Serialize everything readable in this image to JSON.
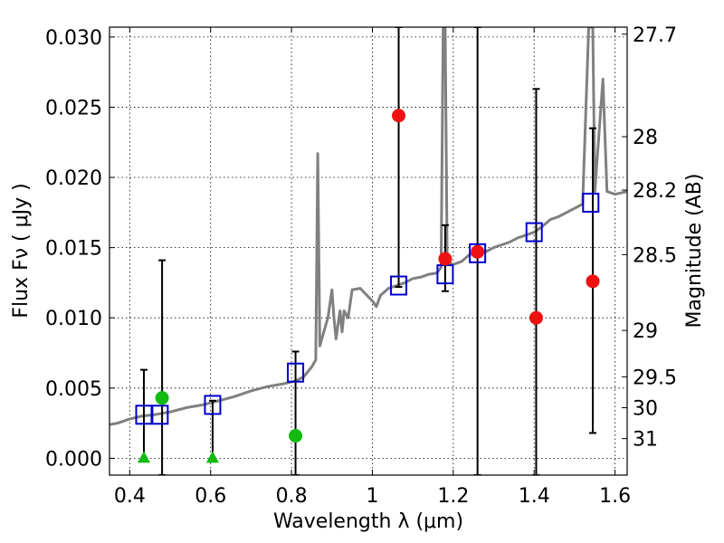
{
  "chart_data": {
    "type": "scatter",
    "xlabel": "Wavelength  λ (μm)",
    "ylabel_left": "Flux  Fν  ( μJy )",
    "ylabel_right": "Magnitude (AB)",
    "xlim": [
      0.35,
      1.63
    ],
    "ylim": [
      -0.0012,
      0.0307
    ],
    "x_ticks": [
      0.4,
      0.6,
      0.8,
      1.0,
      1.2,
      1.4,
      1.6
    ],
    "x_tick_labels": [
      "0.4",
      "0.6",
      "0.8",
      "1",
      "1.2",
      "1.4",
      "1.6"
    ],
    "y_ticks": [
      0.0,
      0.005,
      0.01,
      0.015,
      0.02,
      0.025,
      0.03
    ],
    "y_tick_labels": [
      "0.000",
      "0.005",
      "0.010",
      "0.015",
      "0.020",
      "0.025",
      "0.030"
    ],
    "right_ticks": [
      {
        "label": "27.7",
        "flux": 0.0302
      },
      {
        "label": "28",
        "flux": 0.0229
      },
      {
        "label": "28.2",
        "flux": 0.0191
      },
      {
        "label": "28.5",
        "flux": 0.0145
      },
      {
        "label": "29",
        "flux": 0.0091
      },
      {
        "label": "29.5",
        "flux": 0.0058
      },
      {
        "label": "30",
        "flux": 0.0036
      },
      {
        "label": "31",
        "flux": 0.0014
      }
    ],
    "grid": true,
    "colors": {
      "model": "#808080",
      "model_photometry": "#0000cc",
      "detection": "#ee1111",
      "low_sn": "#11bb11",
      "error_bar": "#000000"
    },
    "model_spectrum": [
      [
        0.35,
        0.0024
      ],
      [
        0.37,
        0.0025
      ],
      [
        0.4,
        0.0028
      ],
      [
        0.43,
        0.003
      ],
      [
        0.46,
        0.0031
      ],
      [
        0.5,
        0.0033
      ],
      [
        0.54,
        0.0036
      ],
      [
        0.58,
        0.0038
      ],
      [
        0.62,
        0.0041
      ],
      [
        0.66,
        0.0044
      ],
      [
        0.7,
        0.0048
      ],
      [
        0.74,
        0.0051
      ],
      [
        0.78,
        0.0053
      ],
      [
        0.81,
        0.0055
      ],
      [
        0.83,
        0.0058
      ],
      [
        0.85,
        0.0065
      ],
      [
        0.86,
        0.007
      ],
      [
        0.865,
        0.0217
      ],
      [
        0.87,
        0.008
      ],
      [
        0.88,
        0.009
      ],
      [
        0.89,
        0.01
      ],
      [
        0.9,
        0.012
      ],
      [
        0.905,
        0.01
      ],
      [
        0.91,
        0.0085
      ],
      [
        0.92,
        0.0105
      ],
      [
        0.925,
        0.009
      ],
      [
        0.93,
        0.0105
      ],
      [
        0.94,
        0.01
      ],
      [
        0.95,
        0.012
      ],
      [
        0.97,
        0.0121
      ],
      [
        0.98,
        0.0118
      ],
      [
        0.99,
        0.0115
      ],
      [
        1.0,
        0.0112
      ],
      [
        1.01,
        0.0108
      ],
      [
        1.02,
        0.0116
      ],
      [
        1.04,
        0.0121
      ],
      [
        1.06,
        0.0123
      ],
      [
        1.08,
        0.0125
      ],
      [
        1.1,
        0.0128
      ],
      [
        1.12,
        0.0129
      ],
      [
        1.14,
        0.0131
      ],
      [
        1.16,
        0.0132
      ],
      [
        1.17,
        0.0136
      ],
      [
        1.175,
        0.0307
      ],
      [
        1.18,
        0.0307
      ],
      [
        1.185,
        0.014
      ],
      [
        1.2,
        0.0138
      ],
      [
        1.22,
        0.014
      ],
      [
        1.24,
        0.0145
      ],
      [
        1.26,
        0.0146
      ],
      [
        1.28,
        0.0147
      ],
      [
        1.3,
        0.015
      ],
      [
        1.32,
        0.0152
      ],
      [
        1.34,
        0.0154
      ],
      [
        1.36,
        0.0157
      ],
      [
        1.38,
        0.0159
      ],
      [
        1.4,
        0.0161
      ],
      [
        1.42,
        0.0165
      ],
      [
        1.44,
        0.017
      ],
      [
        1.46,
        0.0172
      ],
      [
        1.48,
        0.0175
      ],
      [
        1.5,
        0.0178
      ],
      [
        1.52,
        0.0181
      ],
      [
        1.535,
        0.0307
      ],
      [
        1.545,
        0.0307
      ],
      [
        1.55,
        0.019
      ],
      [
        1.57,
        0.027
      ],
      [
        1.58,
        0.019
      ],
      [
        1.6,
        0.0188
      ],
      [
        1.63,
        0.019
      ]
    ],
    "model_photometry": [
      {
        "x": 0.435,
        "y": 0.0031
      },
      {
        "x": 0.475,
        "y": 0.0031
      },
      {
        "x": 0.605,
        "y": 0.0038
      },
      {
        "x": 0.81,
        "y": 0.0061
      },
      {
        "x": 1.065,
        "y": 0.0123
      },
      {
        "x": 1.18,
        "y": 0.0131
      },
      {
        "x": 1.26,
        "y": 0.0146
      },
      {
        "x": 1.4,
        "y": 0.0161
      },
      {
        "x": 1.54,
        "y": 0.0182
      }
    ],
    "observed": [
      {
        "x": 0.435,
        "y": 0.0,
        "err_lo": 0.0,
        "err_hi": 0.0063,
        "kind": "low_sn",
        "marker": "triangle"
      },
      {
        "x": 0.48,
        "y": 0.0043,
        "err_lo": 0.0055,
        "err_hi": 0.0098,
        "kind": "low_sn",
        "marker": "circle"
      },
      {
        "x": 0.605,
        "y": 0.0,
        "err_lo": 0.0,
        "err_hi": 0.0041,
        "kind": "low_sn",
        "marker": "triangle"
      },
      {
        "x": 0.81,
        "y": 0.0016,
        "err_lo": 0.0028,
        "err_hi": 0.006,
        "kind": "low_sn",
        "marker": "circle"
      },
      {
        "x": 1.065,
        "y": 0.0244,
        "err_lo": 0.0122,
        "err_hi": 0.0063,
        "kind": "detection",
        "marker": "circle"
      },
      {
        "x": 1.18,
        "y": 0.0142,
        "err_lo": 0.0023,
        "err_hi": 0.0024,
        "kind": "detection",
        "marker": "circle"
      },
      {
        "x": 1.26,
        "y": 0.0147,
        "err_lo": 0.0159,
        "err_hi": 0.016,
        "kind": "detection",
        "marker": "circle"
      },
      {
        "x": 1.405,
        "y": 0.01,
        "err_lo": 0.0112,
        "err_hi": 0.0163,
        "kind": "detection",
        "marker": "circle"
      },
      {
        "x": 1.545,
        "y": 0.0126,
        "err_lo": 0.0108,
        "err_hi": 0.0109,
        "kind": "detection",
        "marker": "circle"
      }
    ]
  }
}
